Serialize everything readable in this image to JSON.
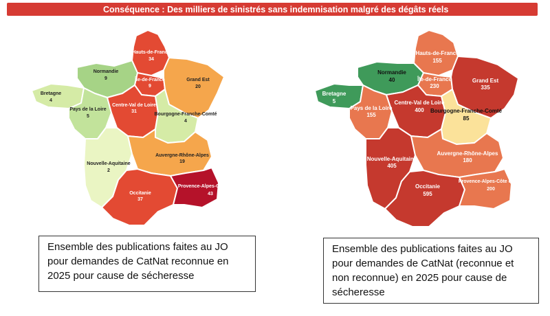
{
  "banner": {
    "title": "Conséquence : Des milliers de sinistrés sans indemnisation malgré des dégâts réels",
    "color": "#d63b33"
  },
  "maps": [
    {
      "caption": "Ensemble des publications faites au JO pour demandes de CatNat reconnue en 2025 pour cause de sécheresse",
      "regions": [
        {
          "name": "Hauts-de-France",
          "value": "34",
          "color": "#e34a33"
        },
        {
          "name": "Normandie",
          "value": "9",
          "color": "#a6d386"
        },
        {
          "name": "Île-de-France",
          "value": "9",
          "color": "#e34a33"
        },
        {
          "name": "Grand Est",
          "value": "20",
          "color": "#f5a64c"
        },
        {
          "name": "Bretagne",
          "value": "4",
          "color": "#d5eba6"
        },
        {
          "name": "Pays de la Loire",
          "value": "5",
          "color": "#c2e39b"
        },
        {
          "name": "Centre-Val de Loire",
          "value": "31",
          "color": "#e34a33"
        },
        {
          "name": "Bourgogne-Franche-Comté",
          "value": "4",
          "color": "#d5eba6"
        },
        {
          "name": "Nouvelle-Aquitaine",
          "value": "2",
          "color": "#eaf5c3"
        },
        {
          "name": "Auvergne-Rhône-Alpes",
          "value": "19",
          "color": "#f5a64c"
        },
        {
          "name": "Occitanie",
          "value": "37",
          "color": "#e34a33"
        },
        {
          "name": "Provence-Alpes-Côte d'Azur",
          "value": "43",
          "color": "#b5122a"
        }
      ]
    },
    {
      "caption": "Ensemble des publications faites au JO pour demandes de CatNat (reconnue et non reconnue) en 2025 pour cause de sécheresse",
      "regions": [
        {
          "name": "Hauts-de-France",
          "value": "155",
          "color": "#e8774f"
        },
        {
          "name": "Normandie",
          "value": "40",
          "color": "#3f9a5a"
        },
        {
          "name": "Île-de-France",
          "value": "230",
          "color": "#e8774f"
        },
        {
          "name": "Grand Est",
          "value": "335",
          "color": "#c5392e"
        },
        {
          "name": "Bretagne",
          "value": "5",
          "color": "#3f9a5a"
        },
        {
          "name": "Pays de la Loire",
          "value": "155",
          "color": "#e8774f"
        },
        {
          "name": "Centre-Val de Loire",
          "value": "400",
          "color": "#c5392e"
        },
        {
          "name": "Bourgogne-Franche-Comté",
          "value": "85",
          "color": "#fbe29a"
        },
        {
          "name": "Nouvelle-Aquitaine",
          "value": "405",
          "color": "#c5392e"
        },
        {
          "name": "Auvergne-Rhône-Alpes",
          "value": "180",
          "color": "#e8774f"
        },
        {
          "name": "Occitanie",
          "value": "595",
          "color": "#c5392e"
        },
        {
          "name": "Provence-Alpes-Côte d'Azur",
          "value": "200",
          "color": "#e8774f"
        }
      ]
    }
  ]
}
